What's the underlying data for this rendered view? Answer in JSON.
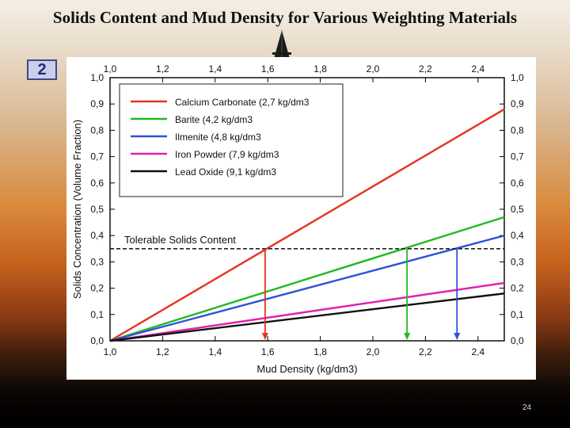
{
  "slide": {
    "title": "Solids Content and Mud Density for Various Weighting Materials",
    "badge": "2",
    "page_number": "24"
  },
  "colors": {
    "calcium_carbonate": "#e8321f",
    "barite": "#22b822",
    "ilmenite": "#2e52d6",
    "iron_powder": "#e020b0",
    "lead_oxide": "#111111",
    "tolerable_line": "#222222"
  },
  "chart_data": {
    "type": "line",
    "title": "",
    "xlabel": "Mud Density (kg/dm3)",
    "ylabel": "Solids Concentration (Volume Fraction)",
    "xlim": [
      1.0,
      2.5
    ],
    "ylim": [
      0.0,
      1.0
    ],
    "x_ticks": [
      "1,0",
      "1,2",
      "1,4",
      "1,6",
      "1,8",
      "2,0",
      "2,2",
      "2,4"
    ],
    "y_ticks": [
      "0,0",
      "0,1",
      "0,2",
      "0,3",
      "0,4",
      "0,5",
      "0,6",
      "0,7",
      "0,8",
      "0,9",
      "1,0"
    ],
    "series": [
      {
        "name": "Calcium Carbonate (2,7 kg/dm3",
        "color": "#e8321f",
        "x": [
          1.0,
          2.5
        ],
        "y": [
          0.0,
          0.88
        ]
      },
      {
        "name": "Barite (4,2 kg/dm3",
        "color": "#22b822",
        "x": [
          1.0,
          2.5
        ],
        "y": [
          0.0,
          0.47
        ]
      },
      {
        "name": "Ilmenite (4,8 kg/dm3",
        "color": "#2e52d6",
        "x": [
          1.0,
          2.5
        ],
        "y": [
          0.0,
          0.4
        ]
      },
      {
        "name": "Iron Powder (7,9 kg/dm3",
        "color": "#e020b0",
        "x": [
          1.0,
          2.5
        ],
        "y": [
          0.0,
          0.22
        ]
      },
      {
        "name": "Lead Oxide (9,1 kg/dm3",
        "color": "#111111",
        "x": [
          1.0,
          2.5
        ],
        "y": [
          0.0,
          0.18
        ]
      }
    ],
    "threshold": {
      "label": "Tolerable Solids Content",
      "y": 0.35
    },
    "arrows": [
      {
        "color": "#e8321f",
        "x": 1.59
      },
      {
        "color": "#22b822",
        "x": 2.13
      },
      {
        "color": "#2e52d6",
        "x": 2.32
      }
    ],
    "grid": false,
    "legend": "top-left"
  }
}
